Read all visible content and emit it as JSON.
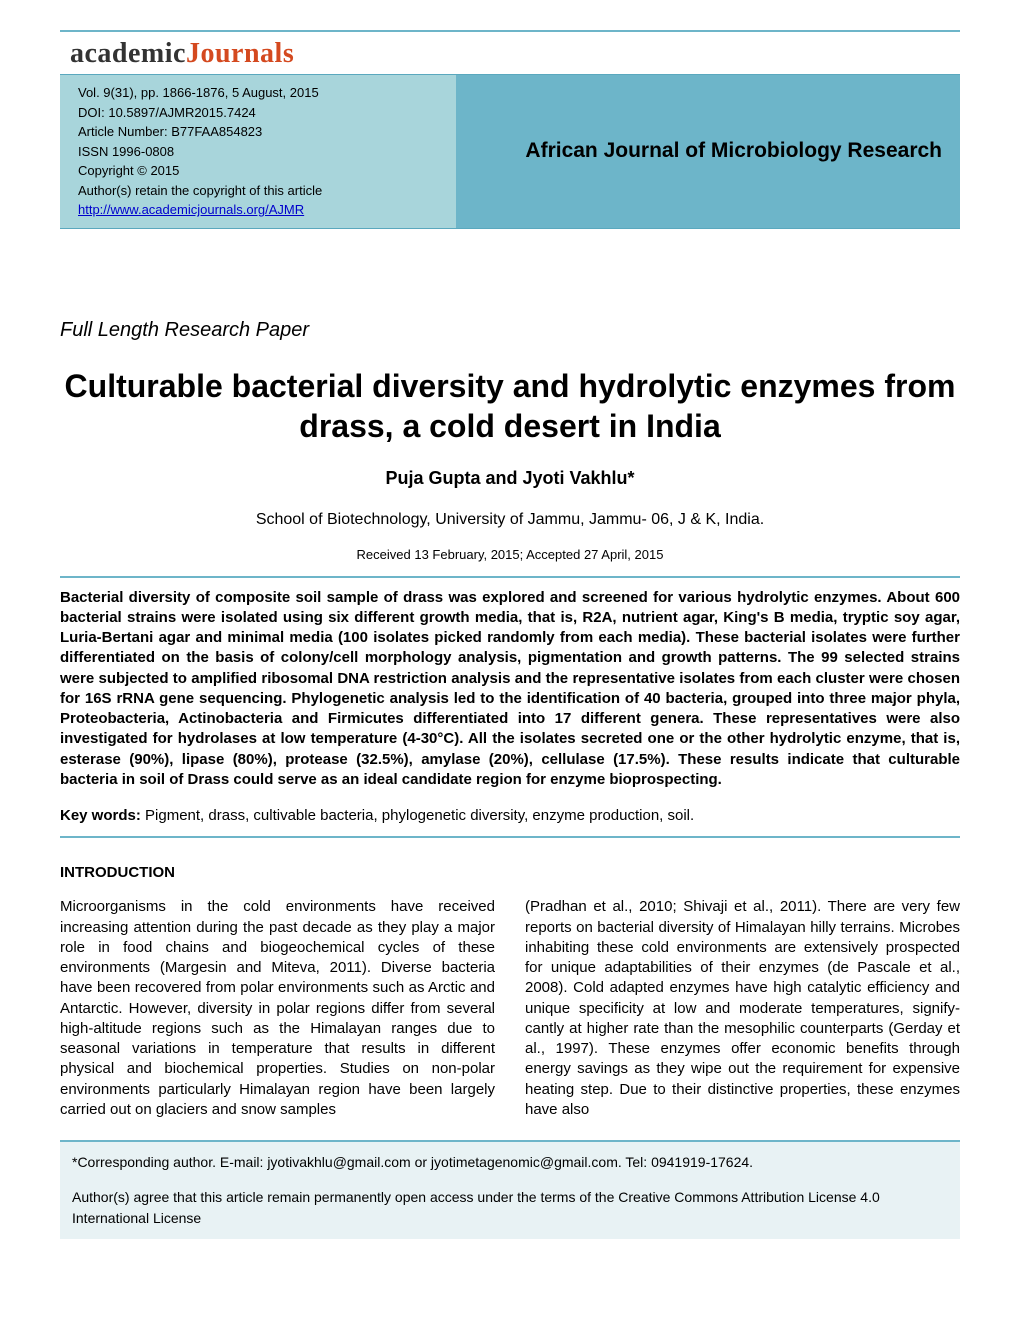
{
  "logo": {
    "part1": "academic",
    "part2": "Journals"
  },
  "header": {
    "volume": "Vol. 9(31), pp. 1866-1876, 5 August, 2015",
    "doi": "DOI: 10.5897/AJMR2015.7424",
    "article_number": "Article Number: B77FAA854823",
    "issn": "ISSN 1996-0808",
    "copyright": "Copyright © 2015",
    "rights": "Author(s) retain the copyright of this article",
    "url": "http://www.academicjournals.org/AJMR",
    "journal_name": "African Journal of Microbiology Research"
  },
  "paper_type": "Full Length Research Paper",
  "title": "Culturable bacterial diversity and hydrolytic enzymes from drass, a cold desert in India",
  "authors": "Puja Gupta and Jyoti Vakhlu*",
  "affiliation": "School of Biotechnology, University of Jammu, Jammu- 06, J & K, India.",
  "dates": "Received 13 February, 2015; Accepted 27 April, 2015",
  "abstract": "Bacterial diversity of composite soil sample of drass was explored and screened for various hydrolytic enzymes. About 600 bacterial strains were isolated using six different growth media, that is, R2A, nutrient agar, King's B media, tryptic soy agar, Luria-Bertani agar and minimal media (100 isolates picked randomly from each media). These bacterial isolates were further differentiated on the basis of colony/cell morphology analysis, pigmentation and growth patterns. The 99 selected strains were subjected to amplified ribosomal DNA restriction analysis and the representative isolates from each cluster were chosen for 16S rRNA gene sequencing. Phylogenetic analysis led to the identification of 40 bacteria, grouped into three major phyla, Proteobacteria, Actinobacteria and Firmicutes differentiated into 17 different genera. These representatives were also investigated for hydrolases at low temperature (4-30°C). All the isolates secreted one or the other hydrolytic enzyme, that is, esterase (90%), lipase (80%), protease (32.5%), amylase (20%), cellulase (17.5%). These results indicate that culturable bacteria in soil of Drass could serve as an ideal candidate region for enzyme bioprospecting.",
  "keywords_label": "Key words:",
  "keywords": " Pigment, drass, cultivable bacteria, phylogenetic diversity, enzyme production, soil.",
  "intro_heading": "INTRODUCTION",
  "intro_col1": "Microorganisms in the cold environments have received increasing attention during the past decade as they play a major role in food chains and biogeochemical cycles of these environments (Margesin and Miteva, 2011). Diverse bacteria have been recovered from polar environments such as Arctic and Antarctic. However, diversity in polar regions differ from several high-altitude regions such as the Himalayan ranges due to seasonal variations in temperature that results in different physical and biochemical properties. Studies on non-polar environments particularly Himalayan region have been largely carried out on glaciers and snow samples",
  "intro_col2": "(Pradhan et al., 2010; Shivaji et al., 2011). There are very few reports on bacterial diversity of Himalayan hilly terrains. Microbes inhabiting these cold environments are extensively prospected for unique adaptabilities of their enzymes (de Pascale et al., 2008). Cold adapted enzymes have high catalytic efficiency and unique specificity at low and moderate temperatures, signify-cantly at higher rate than the mesophilic counterparts (Gerday et al., 1997). These enzymes offer economic benefits through energy savings as they wipe out the requirement for expensive heating step. Due to their distinctive properties, these enzymes have also",
  "footer": {
    "corresponding": "*Corresponding author. E-mail: jyotivakhlu@gmail.com or jyotimetagenomic@gmail.com. Tel: 0941919-17624.",
    "license_prefix": "Author(s) agree that this article remain permanently open access under the terms of the ",
    "license_link": "Creative Commons Attribution License 4.0 International License"
  },
  "colors": {
    "accent": "#6db5c9",
    "header_left_bg": "#a8d5db",
    "header_right_bg": "#6db5c9",
    "logo_orange": "#d4491f",
    "footer_bg": "#e8f2f4"
  }
}
